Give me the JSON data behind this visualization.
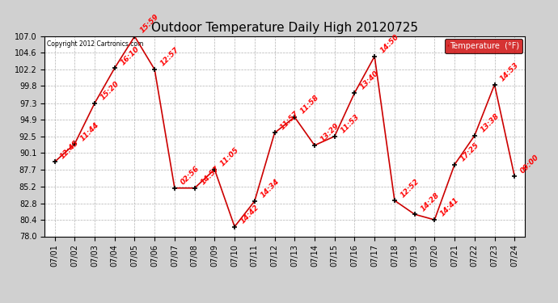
{
  "title": "Outdoor Temperature Daily High 20120725",
  "legend_label": "Temperature  (°F)",
  "copyright": "Copyright 2012 Cartronics.com",
  "background_color": "#d0d0d0",
  "plot_bg_color": "#ffffff",
  "line_color": "#cc0000",
  "marker_color": "#000000",
  "label_color": "#ff0000",
  "legend_bg": "#cc0000",
  "legend_text_color": "#ffffff",
  "dates": [
    "07/01",
    "07/02",
    "07/03",
    "07/04",
    "07/05",
    "07/06",
    "07/07",
    "07/08",
    "07/09",
    "07/10",
    "07/11",
    "07/12",
    "07/13",
    "07/14",
    "07/15",
    "07/16",
    "07/17",
    "07/18",
    "07/19",
    "07/20",
    "07/21",
    "07/22",
    "07/23",
    "07/24"
  ],
  "values": [
    88.8,
    91.4,
    97.3,
    102.4,
    107.0,
    102.2,
    85.0,
    85.0,
    87.7,
    79.4,
    83.1,
    93.0,
    95.3,
    91.2,
    92.5,
    98.8,
    104.1,
    83.2,
    81.2,
    80.4,
    88.4,
    92.6,
    100.0,
    86.7
  ],
  "time_labels": [
    "12:45",
    "11:44",
    "15:20",
    "16:10",
    "15:59",
    "12:57",
    "02:56",
    "14:57",
    "11:05",
    "14:42",
    "14:34",
    "11:57",
    "11:58",
    "13:29",
    "11:53",
    "13:40",
    "14:50",
    "12:52",
    "14:28",
    "14:41",
    "17:25",
    "13:38",
    "14:53",
    "09:00"
  ],
  "ylim": [
    78.0,
    107.0
  ],
  "ytick_vals": [
    78.0,
    80.4,
    82.8,
    85.2,
    87.7,
    90.1,
    92.5,
    94.9,
    97.3,
    99.8,
    102.2,
    104.6,
    107.0
  ],
  "title_fontsize": 11,
  "tick_fontsize": 7,
  "label_fontsize": 6.5,
  "marker_size": 5,
  "line_width": 1.2
}
